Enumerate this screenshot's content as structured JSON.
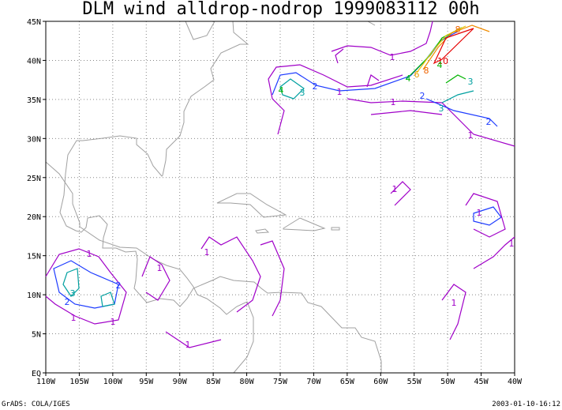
{
  "title": "DLM wind alldrop-nodrop 1999083112 00h",
  "x_labels": [
    "110W",
    "105W",
    "100W",
    "95W",
    "90W",
    "85W",
    "80W",
    "75W",
    "70W",
    "65W",
    "60W",
    "55W",
    "50W",
    "45W",
    "40W"
  ],
  "y_labels": [
    "EQ",
    "5N",
    "10N",
    "15N",
    "20N",
    "25N",
    "30N",
    "35N",
    "40N",
    "45N"
  ],
  "footer_left": "GrADS: COLA/IGES",
  "footer_right": "2003-01-10-16:12",
  "contour_labels": [
    {
      "text": "1",
      "color": "#a000c8"
    },
    {
      "text": "1",
      "color": "#a000c8"
    },
    {
      "text": "2",
      "color": "#1e3cff"
    },
    {
      "text": "3",
      "color": "#00a0a0"
    },
    {
      "text": "4",
      "color": "#00b400"
    },
    {
      "text": "1",
      "color": "#a000c8"
    },
    {
      "text": "2",
      "color": "#1e3cff"
    },
    {
      "text": "3",
      "color": "#00a0a0"
    },
    {
      "text": "2",
      "color": "#1e3cff"
    },
    {
      "text": "1",
      "color": "#a000c8"
    },
    {
      "text": "4",
      "color": "#00b400"
    },
    {
      "text": "6",
      "color": "#e6a000"
    },
    {
      "text": "8",
      "color": "#f06400"
    },
    {
      "text": "10",
      "color": "#e60000"
    },
    {
      "text": "8",
      "color": "#f06400"
    },
    {
      "text": "4",
      "color": "#00b400"
    },
    {
      "text": "3",
      "color": "#00a0a0"
    },
    {
      "text": "1",
      "color": "#a000c8"
    },
    {
      "text": "1",
      "color": "#a000c8"
    },
    {
      "text": "1",
      "color": "#a000c8"
    },
    {
      "text": "1",
      "color": "#a000c8"
    },
    {
      "text": "2",
      "color": "#1e3cff"
    },
    {
      "text": "3",
      "color": "#00a0a0"
    },
    {
      "text": "2",
      "color": "#1e3cff"
    },
    {
      "text": "1",
      "color": "#a000c8"
    },
    {
      "text": "1",
      "color": "#a000c8"
    },
    {
      "text": "1",
      "color": "#a000c8"
    },
    {
      "text": "1",
      "color": "#a000c8"
    },
    {
      "text": "1",
      "color": "#a000c8"
    },
    {
      "text": "1",
      "color": "#a000c8"
    }
  ]
}
